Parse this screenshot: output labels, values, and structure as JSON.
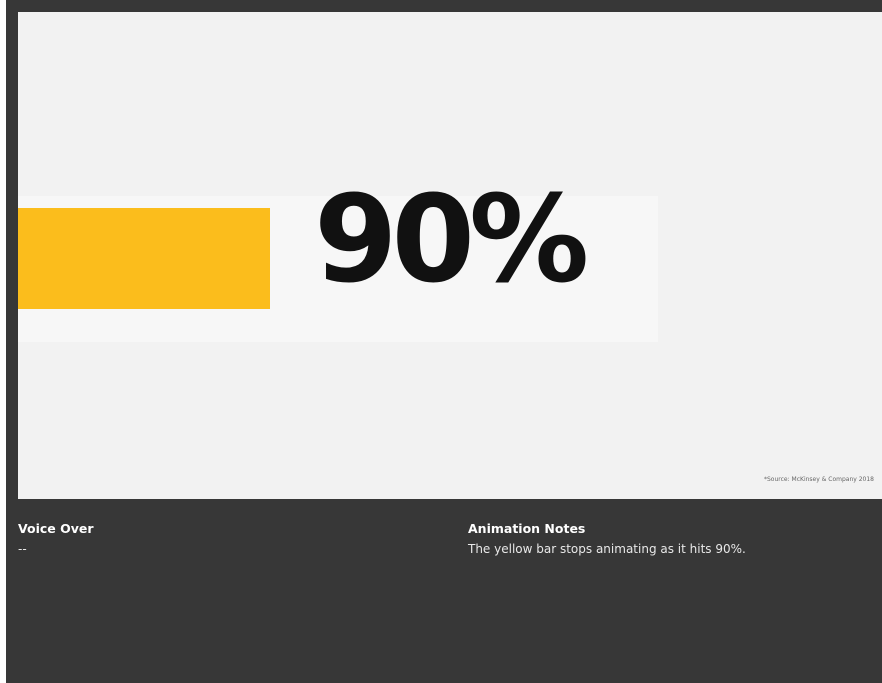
{
  "slide": {
    "stat_value": "90%",
    "progress_fraction": 0.9,
    "bar_color": "#fbbd1c",
    "source_note": "*Source: McKinsey & Company 2018"
  },
  "notes": {
    "voice_over": {
      "title": "Voice Over",
      "text": "--"
    },
    "animation_notes": {
      "title": "Animation Notes",
      "text": "The yellow bar stops animating as it hits 90%."
    }
  },
  "colors": {
    "background": "#373737",
    "slide_background": "#f2f2f2",
    "accent": "#fbbd1c",
    "stat_text": "#111111"
  }
}
